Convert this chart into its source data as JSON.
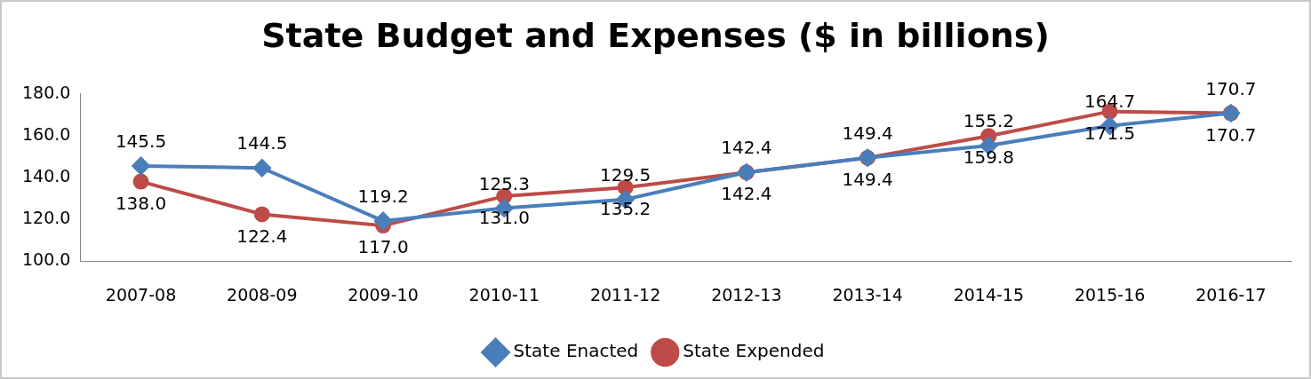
{
  "chart_data": {
    "type": "line",
    "title": "State Budget and Expenses ($ in billions)",
    "categories": [
      "2007-08",
      "2008-09",
      "2009-10",
      "2010-11",
      "2011-12",
      "2012-13",
      "2013-14",
      "2014-15",
      "2015-16",
      "2016-17"
    ],
    "series": [
      {
        "name": "State Enacted",
        "color": "#4a7ebb",
        "marker": "diamond",
        "values": [
          145.5,
          144.5,
          119.2,
          125.3,
          129.5,
          142.4,
          149.4,
          155.2,
          164.7,
          170.7
        ],
        "value_labels": [
          "145.5",
          "144.5",
          "119.2",
          "125.3",
          "129.5",
          "142.4",
          "149.4",
          "155.2",
          "164.7",
          "170.7"
        ]
      },
      {
        "name": "State Expended",
        "color": "#be4b48",
        "marker": "circle",
        "values": [
          138.0,
          122.4,
          117.0,
          131.0,
          135.2,
          142.4,
          149.4,
          159.8,
          171.5,
          170.7
        ],
        "value_labels": [
          "138.0",
          "122.4",
          "117.0",
          "131.0",
          "135.2",
          "142.4",
          "149.4",
          "159.8",
          "171.5",
          "170.7"
        ]
      }
    ],
    "ylim": [
      100,
      180
    ],
    "yticks": [
      {
        "value": 100,
        "label": "100.0"
      },
      {
        "value": 120,
        "label": "120.0"
      },
      {
        "value": 140,
        "label": "140.0"
      },
      {
        "value": 160,
        "label": "160.0"
      },
      {
        "value": 180,
        "label": "180.0"
      }
    ],
    "grid": false,
    "legend": "bottom",
    "line_style": "solid"
  }
}
